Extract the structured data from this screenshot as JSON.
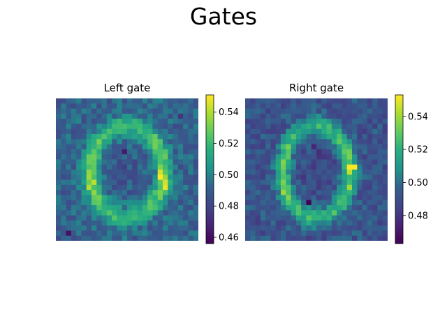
{
  "title": "Gates",
  "chart_data": [
    {
      "type": "heatmap",
      "title": "Left gate",
      "rows": 28,
      "cols": 28,
      "colormap": "viridis",
      "vmin": 0.456,
      "vmax": 0.551,
      "colorbar_ticks": [
        "0.46",
        "0.48",
        "0.50",
        "0.52",
        "0.54"
      ],
      "colorbar_tick_values": [
        0.46,
        0.48,
        0.5,
        0.52,
        0.54
      ],
      "axes": "off",
      "baseline": 0.5,
      "high_spots": [
        [
          15,
          20,
          0.551
        ],
        [
          16,
          21,
          0.545
        ],
        [
          17,
          21,
          0.548
        ],
        [
          14,
          20,
          0.545
        ],
        [
          16,
          7,
          0.542
        ],
        [
          17,
          6,
          0.54
        ]
      ],
      "low_spots": [
        [
          10,
          13,
          0.465
        ],
        [
          26,
          2,
          0.462
        ],
        [
          3,
          24,
          0.474
        ]
      ],
      "description_values": "Two vertical arcs (digit-like ring) with values around 0.52-0.55; background near 0.49-0.50"
    },
    {
      "type": "heatmap",
      "title": "Right gate",
      "rows": 28,
      "cols": 28,
      "colormap": "viridis",
      "vmin": 0.463,
      "vmax": 0.553,
      "colorbar_ticks": [
        "0.48",
        "0.50",
        "0.52",
        "0.54"
      ],
      "colorbar_tick_values": [
        0.48,
        0.5,
        0.52,
        0.54
      ],
      "axes": "off",
      "baseline": 0.5,
      "high_spots": [
        [
          13,
          20,
          0.553
        ],
        [
          13,
          21,
          0.553
        ],
        [
          14,
          20,
          0.545
        ],
        [
          18,
          7,
          0.54
        ],
        [
          17,
          20,
          0.54
        ]
      ],
      "low_spots": [
        [
          20,
          12,
          0.463
        ],
        [
          9,
          13,
          0.475
        ],
        [
          10,
          14,
          0.478
        ]
      ],
      "description_values": "Two vertical arcs with values around 0.52-0.55; background near 0.49-0.50"
    }
  ]
}
